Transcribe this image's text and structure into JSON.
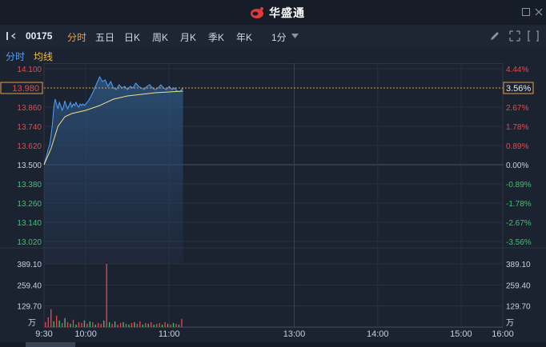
{
  "app": {
    "brand": "华盛通",
    "brand_color": "#e23a3a"
  },
  "toolbar": {
    "code": "00175",
    "tabs": [
      "分时",
      "五日",
      "日K",
      "周K",
      "月K",
      "季K",
      "年K"
    ],
    "active_tab": "分时",
    "interval": "1分",
    "icons": [
      "collapse-left-icon",
      "pencil-icon",
      "expand-icon",
      "fullscreen-icon"
    ]
  },
  "subbar": {
    "price_label": "分时",
    "avg_label": "均线",
    "price_color": "#4aa3ff",
    "avg_color": "#f0c040"
  },
  "current": {
    "price": "13.980",
    "pct": "3.56%"
  },
  "colors": {
    "up": "#e84a4a",
    "down": "#3ec46d",
    "neutral": "#c9d1dc",
    "price_line": "#4aa3ff",
    "avg_line": "#f0e080",
    "volume_red": "#e84a4a",
    "volume_green": "#3ec46d"
  },
  "chart_data": {
    "type": "line",
    "price_axis": {
      "ticks": [
        "14.100",
        "13.860",
        "13.740",
        "13.620",
        "13.500",
        "13.380",
        "13.260",
        "13.140",
        "13.020"
      ],
      "tick_values": [
        14.1,
        13.86,
        13.74,
        13.62,
        13.5,
        13.38,
        13.26,
        13.14,
        13.02
      ],
      "ylim": [
        13.02,
        14.1
      ],
      "base": 13.5
    },
    "pct_axis": {
      "ticks": [
        "4.44%",
        "2.67%",
        "1.78%",
        "0.89%",
        "0.00%",
        "-0.89%",
        "-1.78%",
        "-2.67%",
        "-3.56%"
      ]
    },
    "volume_axis": {
      "ticks": [
        "389.10",
        "259.40",
        "129.70"
      ],
      "unit": "万",
      "ylim": [
        0,
        389.1
      ]
    },
    "time_axis": {
      "ticks": [
        "9:30",
        "10:00",
        "11:00",
        "13:00",
        "14:00",
        "15:00",
        "16:00"
      ]
    },
    "session_minutes": 330,
    "series": [
      {
        "key": "price",
        "minutes": [
          0,
          1,
          2,
          3,
          4,
          5,
          6,
          7,
          8,
          9,
          10,
          11,
          12,
          13,
          14,
          15,
          16,
          17,
          18,
          19,
          20,
          21,
          22,
          23,
          24,
          25,
          26,
          27,
          28,
          29,
          30,
          32,
          35,
          38,
          40,
          42,
          44,
          46,
          48,
          50,
          52,
          54,
          56,
          58,
          60,
          62,
          64,
          66,
          68,
          70,
          72,
          74,
          76,
          78,
          80,
          82,
          84,
          86,
          88,
          90,
          92,
          94,
          96,
          98,
          100
        ],
        "values": [
          13.5,
          13.53,
          13.56,
          13.6,
          13.62,
          13.68,
          13.75,
          13.86,
          13.91,
          13.88,
          13.85,
          13.89,
          13.87,
          13.84,
          13.86,
          13.9,
          13.87,
          13.85,
          13.87,
          13.89,
          13.86,
          13.88,
          13.87,
          13.89,
          13.87,
          13.86,
          13.88,
          13.87,
          13.88,
          13.87,
          13.88,
          13.9,
          13.95,
          14.01,
          14.05,
          14.02,
          14.03,
          13.99,
          14.02,
          13.98,
          13.97,
          14.0,
          13.98,
          13.99,
          13.97,
          13.99,
          13.98,
          14.01,
          13.99,
          13.98,
          13.97,
          13.99,
          14.0,
          13.98,
          13.97,
          13.98,
          14.0,
          13.98,
          13.97,
          13.99,
          13.97,
          13.98,
          13.96,
          13.96,
          13.98
        ]
      },
      {
        "key": "average",
        "minutes": [
          0,
          5,
          10,
          15,
          20,
          30,
          40,
          50,
          60,
          70,
          80,
          90,
          100
        ],
        "values": [
          13.5,
          13.6,
          13.74,
          13.8,
          13.82,
          13.84,
          13.87,
          13.91,
          13.93,
          13.94,
          13.95,
          13.955,
          13.96
        ]
      }
    ],
    "volume": {
      "minutes": [
        1,
        3,
        5,
        7,
        9,
        11,
        13,
        15,
        17,
        19,
        21,
        23,
        25,
        27,
        29,
        31,
        33,
        35,
        37,
        39,
        41,
        43,
        45,
        47,
        49,
        51,
        53,
        55,
        57,
        59,
        61,
        63,
        65,
        67,
        69,
        71,
        73,
        75,
        77,
        79,
        81,
        83,
        85,
        87,
        89,
        91,
        93,
        95,
        97,
        99
      ],
      "values": [
        30,
        60,
        110,
        35,
        70,
        40,
        25,
        55,
        30,
        20,
        45,
        15,
        30,
        25,
        40,
        20,
        35,
        30,
        15,
        25,
        20,
        40,
        390,
        30,
        20,
        35,
        15,
        25,
        30,
        20,
        15,
        25,
        30,
        20,
        35,
        15,
        25,
        20,
        30,
        15,
        20,
        25,
        15,
        30,
        20,
        15,
        25,
        20,
        15,
        50
      ],
      "up": [
        1,
        1,
        1,
        0,
        1,
        0,
        1,
        0,
        1,
        0,
        1,
        0,
        1,
        1,
        0,
        1,
        0,
        1,
        0,
        1,
        1,
        0,
        1,
        0,
        1,
        0,
        1,
        1,
        0,
        1,
        0,
        1,
        0,
        1,
        1,
        0,
        1,
        0,
        1,
        0,
        1,
        1,
        0,
        1,
        0,
        1,
        0,
        1,
        0,
        1
      ]
    }
  }
}
